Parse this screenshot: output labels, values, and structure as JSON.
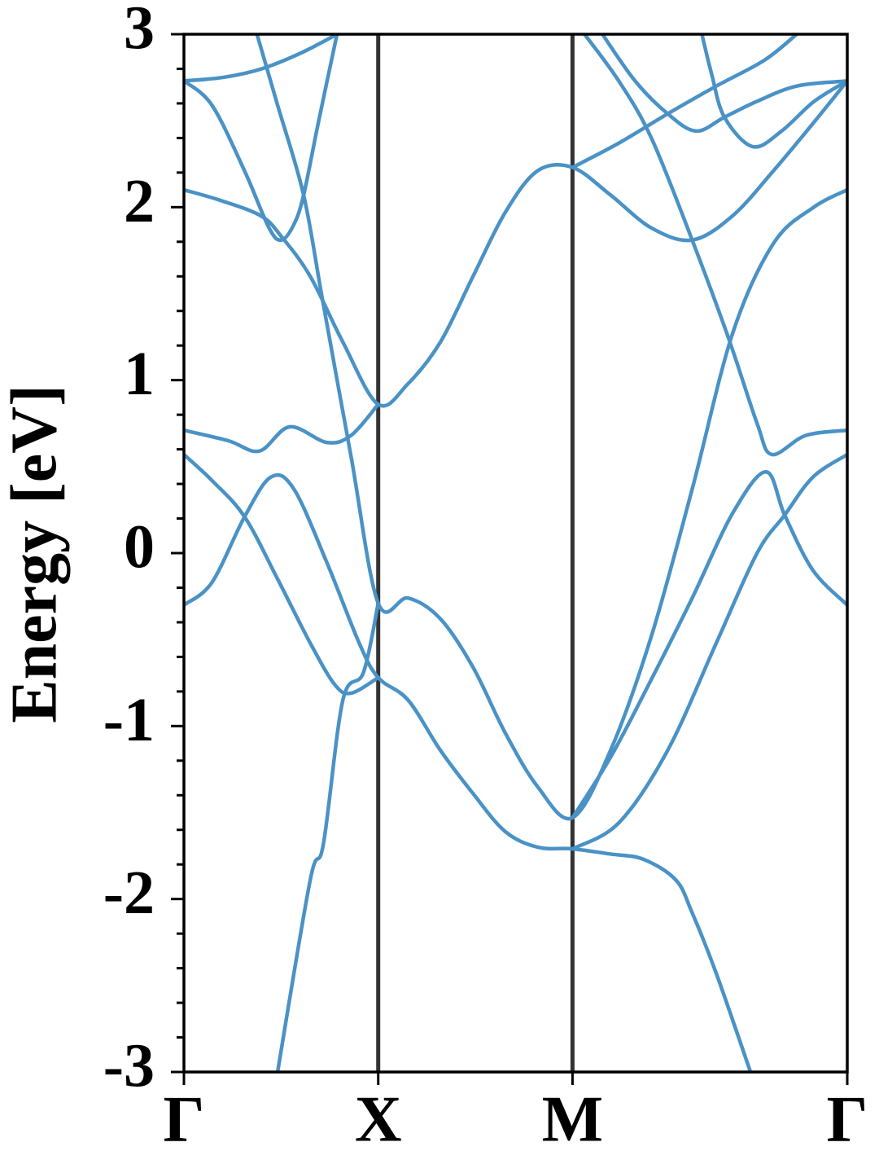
{
  "chart_data": {
    "type": "line",
    "y_label": "Energy [eV]",
    "xlim": [
      0,
      1.7071
    ],
    "xticks": [
      {
        "value": 0,
        "label": "Γ"
      },
      {
        "value": 0.5,
        "label": "X"
      },
      {
        "value": 1.0,
        "label": "M"
      },
      {
        "value": 1.7071,
        "label": "Γ"
      }
    ],
    "ylim": [
      -3,
      3
    ],
    "yticks": [
      -3,
      -2,
      -1,
      0,
      1,
      2,
      3
    ],
    "yminorticks": [
      -2.8,
      -2.6,
      -2.4,
      -2.2,
      -1.8,
      -1.6,
      -1.4,
      -1.2,
      -0.8,
      -0.6,
      -0.4,
      -0.2,
      0.2,
      0.4,
      0.6,
      0.8,
      1.2,
      1.4,
      1.6,
      1.8,
      2.2,
      2.4,
      2.6,
      2.8
    ],
    "color": "#4a92c6",
    "series": [
      {
        "x": [
          0,
          0.1,
          0.2,
          0.3,
          0.394
        ],
        "values": [
          2.73,
          2.75,
          2.8,
          2.89,
          3.0
        ]
      },
      {
        "x": [
          0,
          0.072,
          0.156,
          0.219,
          0.251,
          0.283,
          0.308,
          0.346,
          0.394
        ],
        "values": [
          2.73,
          2.59,
          2.21,
          1.88,
          1.81,
          1.9,
          2.07,
          2.49,
          3.0
        ]
      },
      {
        "x": [
          0,
          0.093,
          0.198,
          0.251,
          0.325,
          0.409,
          0.5,
          0.577,
          0.66,
          0.744,
          0.827,
          0.91,
          1.0,
          1.098,
          1.203,
          1.308,
          1.412,
          1.517,
          1.621,
          1.707
        ],
        "values": [
          2.1,
          2.04,
          1.95,
          1.83,
          1.6,
          1.22,
          0.86,
          0.98,
          1.22,
          1.6,
          1.97,
          2.21,
          2.23,
          2.07,
          1.88,
          1.81,
          1.95,
          2.21,
          2.49,
          2.73
        ]
      },
      {
        "x": [
          1.0,
          1.119,
          1.245,
          1.37,
          1.494,
          1.577
        ],
        "values": [
          2.23,
          2.37,
          2.54,
          2.7,
          2.85,
          3.0
        ]
      },
      {
        "x": [
          0.188,
          0.241,
          0.308,
          0.357,
          0.43,
          0.5,
          0.577,
          0.66,
          0.744,
          0.827,
          0.91,
          1.0,
          1.098,
          1.203,
          1.308,
          1.412,
          1.517,
          1.621,
          1.707
        ],
        "values": [
          3.0,
          2.59,
          2.07,
          1.46,
          0.56,
          -0.29,
          -0.26,
          -0.38,
          -0.66,
          -1.04,
          -1.35,
          -1.53,
          -1.14,
          -0.48,
          0.37,
          1.27,
          1.79,
          2.0,
          2.1
        ]
      },
      {
        "x": [
          0.241,
          0.325,
          0.359,
          0.409,
          0.462,
          0.5
        ],
        "values": [
          -3.0,
          -1.89,
          -1.68,
          -0.85,
          -0.69,
          -0.29
        ]
      },
      {
        "x": [
          0,
          0.072,
          0.156,
          0.224,
          0.283,
          0.367,
          0.451,
          0.5,
          0.577,
          0.66,
          0.744,
          0.827,
          0.91,
          1.0,
          1.098,
          1.182,
          1.266,
          1.308,
          1.37,
          1.458
        ],
        "values": [
          -0.3,
          -0.17,
          0.21,
          0.44,
          0.37,
          -0.05,
          -0.52,
          -0.72,
          -0.85,
          -1.14,
          -1.39,
          -1.61,
          -1.7,
          -1.71,
          -1.74,
          -1.77,
          -1.89,
          -2.08,
          -2.43,
          -3.0
        ]
      },
      {
        "x": [
          0,
          0.072,
          0.156,
          0.241,
          0.325,
          0.388,
          0.43,
          0.5
        ],
        "values": [
          0.57,
          0.42,
          0.21,
          -0.15,
          -0.52,
          -0.76,
          -0.81,
          -0.72
        ]
      },
      {
        "x": [
          0,
          0.114,
          0.194,
          0.272,
          0.367,
          0.43,
          0.5
        ],
        "values": [
          0.71,
          0.65,
          0.59,
          0.73,
          0.64,
          0.68,
          0.86
        ]
      },
      {
        "x": [
          1.0,
          1.098,
          1.203,
          1.308,
          1.412,
          1.498,
          1.546,
          1.619,
          1.707
        ],
        "values": [
          -1.53,
          -1.18,
          -0.73,
          -0.26,
          0.23,
          0.47,
          0.22,
          -0.1,
          -0.3
        ]
      },
      {
        "x": [
          1.0,
          1.119,
          1.245,
          1.37,
          1.475,
          1.546,
          1.619,
          1.707
        ],
        "values": [
          -1.71,
          -1.56,
          -1.14,
          -0.52,
          0.0,
          0.22,
          0.44,
          0.57
        ]
      },
      {
        "x": [
          1.031,
          1.119,
          1.203,
          1.308,
          1.402,
          1.475,
          1.513,
          1.6,
          1.707
        ],
        "values": [
          3.0,
          2.73,
          2.4,
          1.81,
          1.24,
          0.75,
          0.57,
          0.68,
          0.71
        ]
      },
      {
        "x": [
          1.077,
          1.161,
          1.245,
          1.318,
          1.391,
          1.473,
          1.577,
          1.707
        ],
        "values": [
          3.0,
          2.73,
          2.54,
          2.44,
          2.52,
          2.61,
          2.7,
          2.73
        ]
      },
      {
        "x": [
          1.333,
          1.358,
          1.391,
          1.464,
          1.538,
          1.621,
          1.707
        ],
        "values": [
          3.0,
          2.77,
          2.52,
          2.35,
          2.44,
          2.61,
          2.73
        ]
      }
    ]
  }
}
